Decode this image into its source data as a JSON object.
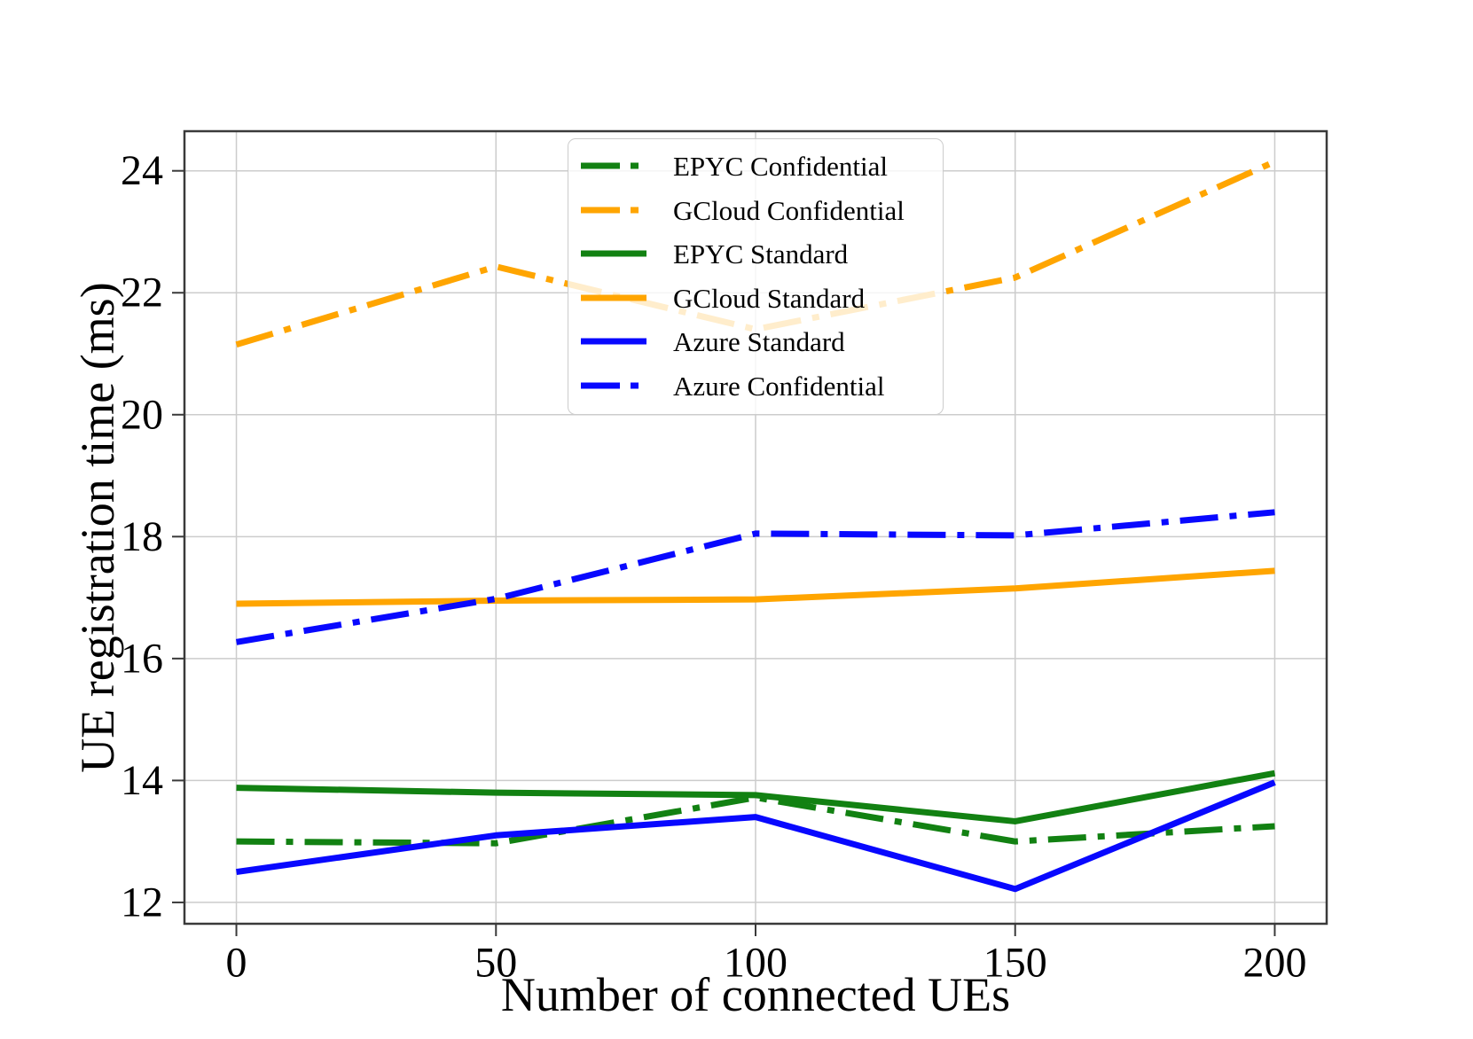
{
  "figure": {
    "background": "#ffffff",
    "grid_color": "#cccccc",
    "spine_color": "#3a3a3a",
    "text_color": "#000000"
  },
  "chart_data": {
    "type": "line",
    "title": "",
    "xlabel": "Number of connected UEs",
    "ylabel": "UE registration time (ms)",
    "x": [
      0,
      50,
      100,
      150,
      200
    ],
    "xticks": [
      0,
      50,
      100,
      150,
      200
    ],
    "yticks": [
      12,
      14,
      16,
      18,
      20,
      22,
      24
    ],
    "xlim": [
      -10,
      210
    ],
    "ylim": [
      11.65,
      24.65
    ],
    "grid": true,
    "legend_position": "upper-center-inside",
    "series": [
      {
        "name": "EPYC Confidential",
        "color": "#128112",
        "style": "dashdot",
        "values": [
          13.0,
          12.97,
          13.72,
          13.0,
          13.25
        ]
      },
      {
        "name": "GCloud Confidential",
        "color": "#FFA500",
        "style": "dashdot",
        "values": [
          21.15,
          22.43,
          21.4,
          22.25,
          24.15
        ]
      },
      {
        "name": "EPYC Standard",
        "color": "#128112",
        "style": "solid",
        "values": [
          13.88,
          13.8,
          13.76,
          13.33,
          14.12
        ]
      },
      {
        "name": "GCloud Standard",
        "color": "#FFA500",
        "style": "solid",
        "values": [
          16.9,
          16.95,
          16.97,
          17.15,
          17.44
        ]
      },
      {
        "name": "Azure Standard",
        "color": "#0808FF",
        "style": "solid",
        "values": [
          12.5,
          13.1,
          13.4,
          12.22,
          13.97
        ]
      },
      {
        "name": "Azure Confidential",
        "color": "#0808FF",
        "style": "dashdot",
        "values": [
          16.27,
          16.98,
          18.05,
          18.02,
          18.4
        ]
      }
    ]
  }
}
